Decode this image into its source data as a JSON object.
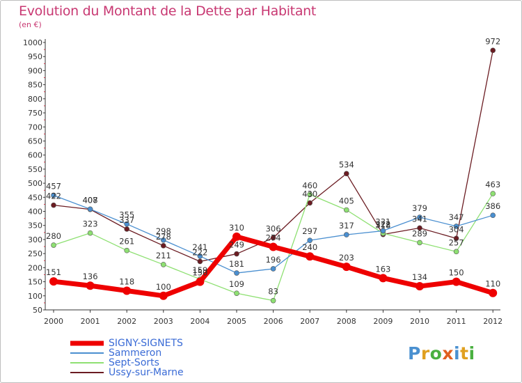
{
  "chart_data": {
    "type": "line",
    "title": "Evolution du Montant de la Dette par Habitant",
    "subtitle": "(en €)",
    "x": [
      "2000",
      "2001",
      "2002",
      "2003",
      "2004",
      "2005",
      "2006",
      "2007",
      "2008",
      "2009",
      "2010",
      "2011",
      "2012"
    ],
    "ylim": [
      50,
      1000
    ],
    "yticks": [
      50,
      100,
      150,
      200,
      250,
      300,
      350,
      400,
      450,
      500,
      550,
      600,
      650,
      700,
      750,
      800,
      850,
      900,
      950,
      1000
    ],
    "grid": false,
    "legend_position": "bottom-left",
    "series": [
      {
        "name": "SIGNY-SIGNETS",
        "color": "#ee0000",
        "values": [
          151,
          136,
          118,
          100,
          150,
          310,
          274,
          240,
          203,
          163,
          134,
          150,
          110
        ]
      },
      {
        "name": "Sammeron",
        "color": "#4a8fd0",
        "values": [
          457,
          408,
          355,
          298,
          241,
          181,
          196,
          297,
          317,
          331,
          379,
          347,
          386
        ]
      },
      {
        "name": "Sept-Sorts",
        "color": "#8ee072",
        "values": [
          280,
          323,
          261,
          211,
          159,
          109,
          83,
          460,
          405,
          322,
          289,
          257,
          463
        ]
      },
      {
        "name": "Ussy-sur-Marne",
        "color": "#6b1c22",
        "values": [
          422,
          407,
          337,
          278,
          222,
          249,
          306,
          430,
          534,
          318,
          341,
          304,
          972
        ]
      }
    ]
  },
  "brand": {
    "letters": [
      "P",
      "r",
      "o",
      "x",
      "i",
      "t",
      "i"
    ],
    "colors": [
      "#4a90d0",
      "#e0a020",
      "#4ab040",
      "#e06020",
      "#4a90d0",
      "#e0a020",
      "#4ab040"
    ]
  }
}
